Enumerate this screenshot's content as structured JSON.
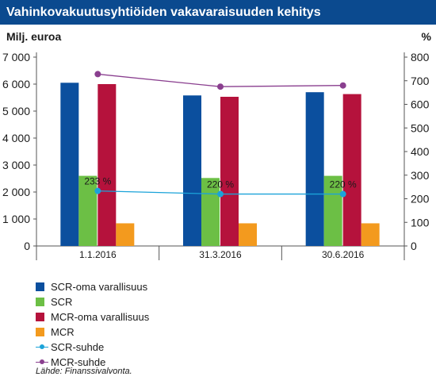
{
  "chart_data": {
    "type": "bar",
    "title": "Vahinkovakuutusyhtiöiden vakavaraisuuden kehitys",
    "ylabel_left": "Milj. euroa",
    "ylabel_right": "%",
    "categories": [
      "1.1.2016",
      "31.3.2016",
      "30.6.2016"
    ],
    "ylim_left": [
      0,
      7000
    ],
    "ylim_right": [
      0,
      800
    ],
    "yticks_left": [
      0,
      1000,
      2000,
      3000,
      4000,
      5000,
      6000,
      7000
    ],
    "yticks_left_labels": [
      "0",
      "1 000",
      "2 000",
      "3 000",
      "4 000",
      "5 000",
      "6 000",
      "7 000"
    ],
    "yticks_right": [
      0,
      100,
      200,
      300,
      400,
      500,
      600,
      700,
      800
    ],
    "series": [
      {
        "name": "SCR-oma varallisuus",
        "type": "bar",
        "axis": "left",
        "color": "#0b4f9e",
        "values": [
          6050,
          5580,
          5700
        ]
      },
      {
        "name": "SCR",
        "type": "bar",
        "axis": "left",
        "color": "#6cbf45",
        "values": [
          2600,
          2520,
          2600
        ]
      },
      {
        "name": "MCR-oma varallisuus",
        "type": "bar",
        "axis": "left",
        "color": "#b5123c",
        "values": [
          6000,
          5530,
          5630
        ]
      },
      {
        "name": "MCR",
        "type": "bar",
        "axis": "left",
        "color": "#f39a1e",
        "values": [
          840,
          840,
          840
        ]
      },
      {
        "name": "SCR-suhde",
        "type": "line",
        "axis": "right",
        "color": "#1ba3d9",
        "values": [
          233,
          220,
          220
        ],
        "labels": [
          "233 %",
          "220 %",
          "220 %"
        ]
      },
      {
        "name": "MCR-suhde",
        "type": "line",
        "axis": "right",
        "color": "#8a3f8f",
        "values": [
          728,
          675,
          680
        ]
      }
    ],
    "legend_position": "bottom-left",
    "grid": false
  },
  "source": "Lähde: Finanssivalvonta."
}
